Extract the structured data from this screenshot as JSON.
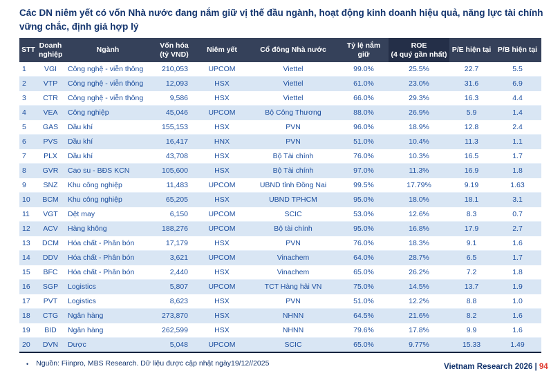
{
  "title": "Các DN niêm yết có vốn Nhà nước đang nắm giữ vị thế đầu ngành, hoạt động kinh doanh hiệu quả, năng lực tài chính vững chắc, định giá hợp lý",
  "table": {
    "columns": [
      {
        "key": "stt",
        "label": "STT",
        "emphasis": false
      },
      {
        "key": "ticker",
        "label": "Doanh\nnghiệp",
        "emphasis": false
      },
      {
        "key": "industry",
        "label": "Ngành",
        "emphasis": false
      },
      {
        "key": "marketcap",
        "label": "Vốn hóa\n(tỷ VND)",
        "emphasis": false
      },
      {
        "key": "listing",
        "label": "Niêm yết",
        "emphasis": false
      },
      {
        "key": "shareholder",
        "label": "Cổ đông Nhà nước",
        "emphasis": false
      },
      {
        "key": "ownership",
        "label": "Tỷ lệ nắm giữ",
        "emphasis": false
      },
      {
        "key": "roe",
        "label": "ROE\n(4 quý gần nhất)",
        "emphasis": true
      },
      {
        "key": "pe",
        "label": "P/E hiện tại",
        "emphasis": false
      },
      {
        "key": "pb",
        "label": "P/B hiện tại",
        "emphasis": false
      }
    ],
    "rows": [
      [
        "1",
        "VGI",
        "Công nghệ - viễn thông",
        "210,053",
        "UPCOM",
        "Viettel",
        "99.0%",
        "25.5%",
        "22.7",
        "5.5"
      ],
      [
        "2",
        "VTP",
        "Công nghệ - viễn thông",
        "12,093",
        "HSX",
        "Viettel",
        "61.0%",
        "23.0%",
        "31.6",
        "6.9"
      ],
      [
        "3",
        "CTR",
        "Công nghệ - viễn thông",
        "9,586",
        "HSX",
        "Viettel",
        "66.0%",
        "29.3%",
        "16.3",
        "4.4"
      ],
      [
        "4",
        "VEA",
        "Công nghiệp",
        "45,046",
        "UPCOM",
        "Bộ Công Thương",
        "88.0%",
        "26.9%",
        "5.9",
        "1.4"
      ],
      [
        "5",
        "GAS",
        "Dầu khí",
        "155,153",
        "HSX",
        "PVN",
        "96.0%",
        "18.9%",
        "12.8",
        "2.4"
      ],
      [
        "6",
        "PVS",
        "Dầu khí",
        "16,417",
        "HNX",
        "PVN",
        "51.0%",
        "10.4%",
        "11.3",
        "1.1"
      ],
      [
        "7",
        "PLX",
        "Dầu khí",
        "43,708",
        "HSX",
        "Bộ Tài chính",
        "76.0%",
        "10.3%",
        "16.5",
        "1.7"
      ],
      [
        "8",
        "GVR",
        "Cao su - BĐS KCN",
        "105,600",
        "HSX",
        "Bộ Tài chính",
        "97.0%",
        "11.3%",
        "16.9",
        "1.8"
      ],
      [
        "9",
        "SNZ",
        "Khu công nghiệp",
        "11,483",
        "UPCOM",
        "UBND tỉnh Đồng Nai",
        "99.5%",
        "17.79%",
        "9.19",
        "1.63"
      ],
      [
        "10",
        "BCM",
        "Khu công nghiệp",
        "65,205",
        "HSX",
        "UBND TPHCM",
        "95.0%",
        "18.0%",
        "18.1",
        "3.1"
      ],
      [
        "11",
        "VGT",
        "Dệt may",
        "6,150",
        "UPCOM",
        "SCIC",
        "53.0%",
        "12.6%",
        "8.3",
        "0.7"
      ],
      [
        "12",
        "ACV",
        "Hàng không",
        "188,276",
        "UPCOM",
        "Bộ tài chính",
        "95.0%",
        "16.8%",
        "17.9",
        "2.7"
      ],
      [
        "13",
        "DCM",
        "Hóa chất - Phân bón",
        "17,179",
        "HSX",
        "PVN",
        "76.0%",
        "18.3%",
        "9.1",
        "1.6"
      ],
      [
        "14",
        "DDV",
        "Hóa chất - Phân bón",
        "3,621",
        "UPCOM",
        "Vinachem",
        "64.0%",
        "28.7%",
        "6.5",
        "1.7"
      ],
      [
        "15",
        "BFC",
        "Hóa chất - Phân bón",
        "2,440",
        "HSX",
        "Vinachem",
        "65.0%",
        "26.2%",
        "7.2",
        "1.8"
      ],
      [
        "16",
        "SGP",
        "Logistics",
        "5,807",
        "UPCOM",
        "TCT Hàng hải VN",
        "75.0%",
        "14.5%",
        "13.7",
        "1.9"
      ],
      [
        "17",
        "PVT",
        "Logistics",
        "8,623",
        "HSX",
        "PVN",
        "51.0%",
        "12.2%",
        "8.8",
        "1.0"
      ],
      [
        "18",
        "CTG",
        "Ngân hàng",
        "273,870",
        "HSX",
        "NHNN",
        "64.5%",
        "21.6%",
        "8.2",
        "1.6"
      ],
      [
        "19",
        "BID",
        "Ngân hàng",
        "262,599",
        "HSX",
        "NHNN",
        "79.6%",
        "17.8%",
        "9.9",
        "1.6"
      ],
      [
        "20",
        "DVN",
        "Dược",
        "5,048",
        "UPCOM",
        "SCIC",
        "65.0%",
        "9.77%",
        "15.33",
        "1.49"
      ]
    ]
  },
  "footer": {
    "bullet": "•",
    "source_note": "Nguồn: Fiinpro, MBS Research. Dữ liệu được cập nhật ngày19/12//2025"
  },
  "page_corner": {
    "text_partial": "Vietnam Research 2026 |",
    "page_number_partial": "94"
  },
  "colors": {
    "title_navy": "#14356e",
    "header_background": "#35415a",
    "header_emphasis_background": "#242f48",
    "row_stripe": "#d9e6f4",
    "body_text_blue": "#1d4f9f",
    "table_bottom_rule": "#16233f",
    "accent_red": "#e03c31"
  }
}
